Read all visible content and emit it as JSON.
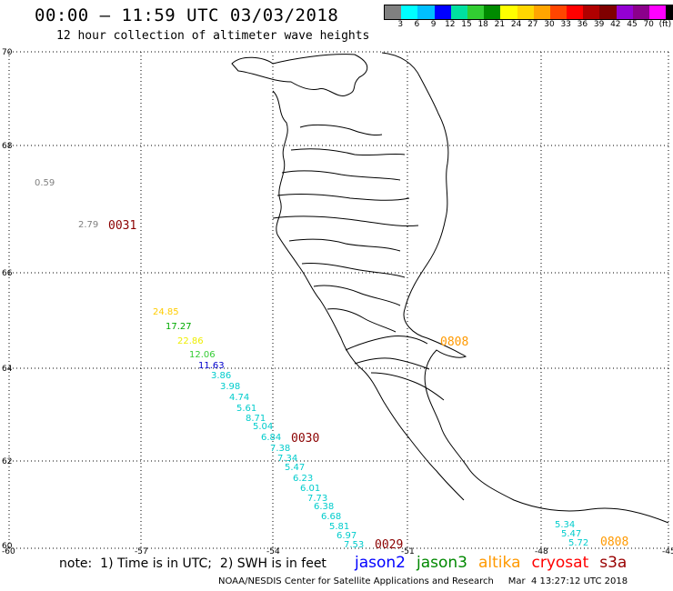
{
  "header": {
    "title": "00:00 – 11:59 UTC 03/03/2018",
    "subtitle": "12 hour collection of altimeter wave heights"
  },
  "colorbar": {
    "colors": [
      "#808080",
      "#00ffff",
      "#00bfff",
      "#0000ff",
      "#00e0a0",
      "#32cd32",
      "#008b00",
      "#ffff00",
      "#ffd700",
      "#ffa500",
      "#ff4500",
      "#ff0000",
      "#b00000",
      "#800000",
      "#9400d3",
      "#8b008b",
      "#ff00ff",
      "#000000"
    ],
    "labels": [
      "3",
      "6",
      "9",
      "12",
      "15",
      "18",
      "21",
      "24",
      "27",
      "30",
      "33",
      "36",
      "39",
      "42",
      "45",
      "70",
      "(ft)"
    ]
  },
  "axes": {
    "lat_labels": [
      "70",
      "68",
      "66",
      "64",
      "62",
      "60"
    ],
    "lon_labels": [
      "-60",
      "-57",
      "-54",
      "-51",
      "-48",
      "-45"
    ]
  },
  "measurements": [
    {
      "text": "0.59",
      "color": "#808080"
    },
    {
      "text": "2.79",
      "color": "#808080"
    },
    {
      "text": "24.85",
      "color": "#ffcc00"
    },
    {
      "text": "17.27",
      "color": "#00aa00"
    },
    {
      "text": "22.86",
      "color": "#eeee00"
    },
    {
      "text": "12.06",
      "color": "#33cc33"
    },
    {
      "text": "11.63",
      "color": "#0000cc"
    },
    {
      "text": "3.86",
      "color": "#00cccc"
    },
    {
      "text": "3.98",
      "color": "#00cccc"
    },
    {
      "text": "4.74",
      "color": "#00cccc"
    },
    {
      "text": "5.61",
      "color": "#00cccc"
    },
    {
      "text": "8.71",
      "color": "#00cccc"
    },
    {
      "text": "5.04",
      "color": "#00cccc"
    },
    {
      "text": "6.84",
      "color": "#00cccc"
    },
    {
      "text": "7.38",
      "color": "#00cccc"
    },
    {
      "text": "7.34",
      "color": "#00cccc"
    },
    {
      "text": "5.47",
      "color": "#00cccc"
    },
    {
      "text": "6.23",
      "color": "#00cccc"
    },
    {
      "text": "6.01",
      "color": "#00cccc"
    },
    {
      "text": "7.73",
      "color": "#00cccc"
    },
    {
      "text": "6.38",
      "color": "#00cccc"
    },
    {
      "text": "6.68",
      "color": "#00cccc"
    },
    {
      "text": "5.81",
      "color": "#00cccc"
    },
    {
      "text": "6.97",
      "color": "#00cccc"
    },
    {
      "text": "7.53",
      "color": "#00cccc"
    },
    {
      "text": "5.34",
      "color": "#00cccc"
    },
    {
      "text": "5.47",
      "color": "#00cccc"
    },
    {
      "text": "5.72",
      "color": "#00cccc"
    }
  ],
  "pass_times": [
    {
      "text": "0031",
      "color": "#8b0000"
    },
    {
      "text": "0030",
      "color": "#8b0000"
    },
    {
      "text": "0029",
      "color": "#8b0000"
    },
    {
      "text": "0808",
      "color": "#ff9900"
    },
    {
      "text": "0808",
      "color": "#ff9900"
    }
  ],
  "footer": {
    "note": "note:  1) Time is in UTC;  2) SWH is in feet",
    "satellites": [
      {
        "name": "jason2",
        "color": "#0000ff"
      },
      {
        "name": "jason3",
        "color": "#008800"
      },
      {
        "name": "altika",
        "color": "#ff9900"
      },
      {
        "name": "cryosat",
        "color": "#ff0000"
      },
      {
        "name": "s3a",
        "color": "#990000"
      }
    ],
    "credit": "NOAA/NESDIS Center for Satellite Applications and Research     Mar  4 13:27:12 UTC 2018"
  }
}
